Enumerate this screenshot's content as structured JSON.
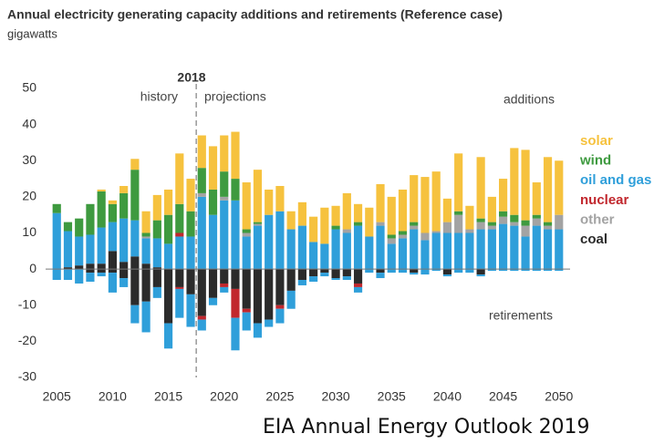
{
  "chart_data": {
    "type": "bar",
    "title": "Annual electricity generating capacity additions and retirements (Reference case)",
    "subtitle": "gigawatts",
    "annotations": {
      "year": "2018",
      "history": "history",
      "projections": "projections",
      "additions": "additions",
      "retirements": "retirements"
    },
    "footer": "EIA Annual Energy Outlook 2019",
    "x": [
      2005,
      2006,
      2007,
      2008,
      2009,
      2010,
      2011,
      2012,
      2013,
      2014,
      2015,
      2016,
      2017,
      2018,
      2019,
      2020,
      2021,
      2022,
      2023,
      2024,
      2025,
      2026,
      2027,
      2028,
      2029,
      2030,
      2031,
      2032,
      2033,
      2034,
      2035,
      2036,
      2037,
      2038,
      2039,
      2040,
      2041,
      2042,
      2043,
      2044,
      2045,
      2046,
      2047,
      2048,
      2049,
      2050
    ],
    "xlim": [
      2004,
      2051
    ],
    "xticks": [
      2005,
      2010,
      2015,
      2020,
      2025,
      2030,
      2035,
      2040,
      2045,
      2050
    ],
    "ylim": [
      -30,
      50
    ],
    "yticks": [
      -30,
      -20,
      -10,
      0,
      10,
      20,
      30,
      40,
      50
    ],
    "series": [
      {
        "name": "solar",
        "color": "#f6c23e",
        "values": [
          0,
          0,
          0,
          0,
          0.5,
          1,
          2,
          3,
          6,
          7,
          7,
          14,
          9,
          9,
          12,
          10,
          13,
          13,
          14.5,
          7,
          7,
          5,
          6.5,
          7,
          10,
          5.5,
          10,
          5,
          8,
          10.5,
          10.5,
          11.5,
          13,
          15.5,
          16.5,
          6.5,
          16,
          6.5,
          17,
          7,
          9,
          18.5,
          19.5,
          9,
          18,
          15
        ],
        "retirements": [
          0,
          0,
          0,
          0,
          0,
          0,
          0,
          0,
          0,
          0,
          0,
          0,
          0,
          0,
          0,
          0,
          0,
          0,
          0,
          0,
          0,
          0,
          0,
          0,
          0,
          0,
          0,
          0,
          0,
          0,
          0,
          0,
          0,
          0,
          0,
          0,
          0,
          0,
          0,
          0,
          0,
          0,
          0,
          0,
          0,
          0
        ]
      },
      {
        "name": "wind",
        "color": "#3e9a3f",
        "values": [
          2.5,
          2.5,
          5,
          8.5,
          10,
          5,
          7,
          14,
          1,
          5,
          8,
          8,
          7,
          7,
          7,
          7,
          6,
          1,
          0.5,
          0,
          0,
          0,
          0,
          0,
          0,
          1,
          0,
          1,
          0,
          0,
          1,
          1,
          1,
          0,
          0,
          0,
          1,
          0,
          1,
          1,
          1.5,
          2,
          1.5,
          1,
          1,
          0
        ],
        "retirements": [
          0,
          0,
          0,
          0,
          0,
          0,
          0,
          0,
          0,
          0,
          0,
          0,
          0,
          0,
          0,
          0,
          0,
          0,
          0,
          0,
          0,
          0,
          0,
          0,
          0,
          0,
          0,
          0,
          0,
          0,
          0,
          0,
          0,
          0,
          0,
          0,
          0,
          0,
          0,
          0,
          0,
          0,
          0,
          0,
          0,
          0
        ]
      },
      {
        "name": "oil and gas",
        "color": "#2f9fda",
        "values": [
          15.5,
          10,
          8,
          8,
          10,
          8,
          12,
          10,
          7,
          8,
          7,
          9,
          9,
          20,
          15,
          19,
          19,
          9,
          12,
          15,
          16,
          11,
          12,
          7.5,
          7,
          11,
          10,
          12,
          9,
          12,
          7,
          8.5,
          11,
          8,
          10,
          10,
          10,
          10,
          11,
          11,
          12.5,
          12,
          9,
          12,
          11,
          11
        ],
        "retirements": [
          -3,
          -3,
          -4,
          -2.5,
          -1,
          -5.5,
          -2.5,
          -5,
          -8.5,
          -3,
          -7,
          -8,
          -9,
          -3,
          -2,
          -1.5,
          -9,
          -5,
          -4,
          -2,
          -4,
          -5,
          -1.5,
          -1.5,
          -1,
          -0.5,
          -1,
          -1.5,
          -1,
          -1.5,
          -1,
          -1,
          -0.5,
          -1.5,
          -0.5,
          -0.5,
          -1,
          -1,
          -0.5,
          -0.5,
          -0.5,
          -0.5,
          -0.5,
          -0.5,
          -0.5,
          -0.5
        ]
      },
      {
        "name": "nuclear",
        "color": "#c1272d",
        "values": [
          0,
          0,
          0,
          0,
          0,
          0,
          0,
          0,
          0,
          0,
          0,
          1,
          0,
          0,
          0,
          0,
          0,
          0,
          0,
          0,
          0,
          0,
          0,
          0,
          0,
          0,
          0,
          0,
          0,
          0,
          0,
          0,
          0,
          0,
          0,
          0,
          0,
          0,
          0,
          0,
          0,
          0,
          0,
          0,
          0,
          0
        ],
        "retirements": [
          0,
          0,
          0,
          0,
          0,
          0,
          0,
          0,
          0,
          0,
          0,
          -0.5,
          0,
          -1,
          0,
          -1,
          -8,
          -1,
          0,
          0,
          -1,
          0,
          0,
          0,
          0,
          0,
          0,
          -1,
          0,
          0,
          0,
          0,
          0,
          0,
          0,
          0,
          0,
          0,
          0,
          0,
          0,
          0,
          0,
          0,
          0,
          0
        ]
      },
      {
        "name": "other",
        "color": "#a3a3a3",
        "values": [
          0,
          0,
          0,
          0,
          0,
          0,
          0,
          0,
          0.5,
          0,
          0,
          0,
          0,
          1,
          0,
          1,
          0,
          1,
          0.5,
          0,
          0,
          0,
          0,
          0,
          0,
          0,
          1,
          0,
          0,
          1,
          1.5,
          1,
          1,
          2,
          0.5,
          3,
          5,
          1,
          2,
          1,
          2,
          1,
          3,
          2,
          1,
          4
        ],
        "retirements": [
          0,
          0,
          0,
          0,
          0,
          0,
          0,
          0,
          0,
          0,
          0,
          0,
          0,
          0,
          0,
          0,
          0,
          0,
          0,
          0,
          0,
          0,
          0,
          0,
          0,
          0,
          0,
          0,
          0,
          0,
          0,
          0,
          0,
          0,
          0,
          0,
          0,
          0,
          0,
          0,
          0,
          0,
          0,
          0,
          0,
          0
        ]
      },
      {
        "name": "coal",
        "color": "#2b2b2b",
        "values": [
          0,
          0.5,
          1,
          1.5,
          1.5,
          5,
          2,
          3.5,
          1.5,
          0.5,
          0,
          0,
          0,
          0,
          0,
          0,
          0,
          0,
          0,
          0,
          0,
          0,
          0,
          0,
          0,
          0,
          0,
          0,
          0,
          0,
          0,
          0,
          0,
          0,
          0,
          0,
          0,
          0,
          0,
          0,
          0,
          0,
          0,
          0,
          0,
          0
        ],
        "retirements": [
          0,
          0,
          0,
          -1,
          -1,
          -1,
          -2.5,
          -10,
          -9,
          -5,
          -15,
          -5,
          -7,
          -13,
          -8,
          -4,
          -5.5,
          -11,
          -15,
          -14,
          -10,
          -6,
          -3,
          -2,
          -1,
          -2.5,
          -2,
          -4,
          0,
          -1,
          0,
          0,
          -1,
          0,
          0,
          -1.5,
          0,
          0,
          -1.5,
          0,
          0,
          0,
          0,
          0,
          0,
          0
        ]
      }
    ]
  }
}
